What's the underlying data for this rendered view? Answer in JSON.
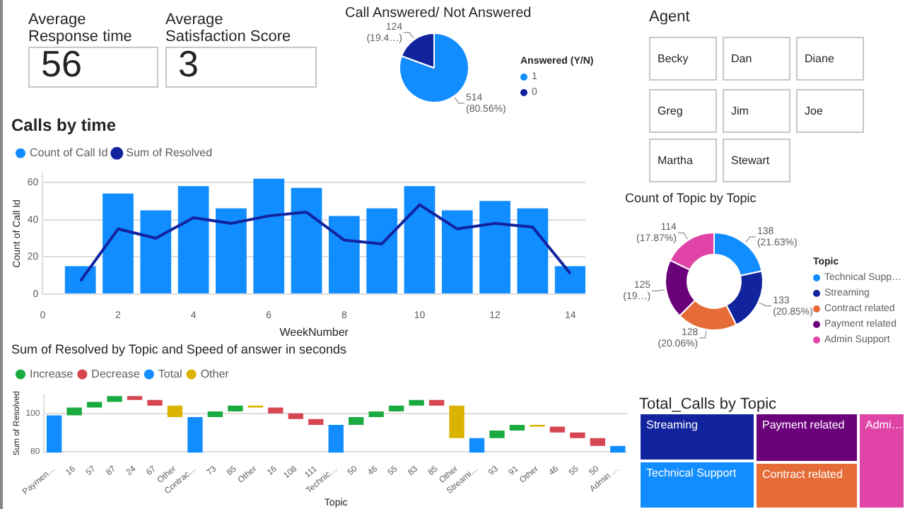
{
  "chart_data": [
    {
      "type": "other",
      "title": "Average Response time",
      "annotations": [
        "56"
      ]
    },
    {
      "type": "other",
      "title": "Average Satisfaction Score",
      "annotations": [
        "3"
      ]
    },
    {
      "type": "pie",
      "title": "Call Answered/ Not Answered",
      "legend_title": "Answered (Y/N)",
      "legend": "right",
      "categories": [
        "1",
        "0"
      ],
      "values": [
        514,
        124
      ],
      "colors": [
        "#118dff",
        "#12239e"
      ],
      "value_labels": [
        "514 (80.56%)",
        "124 (19.4…)"
      ]
    },
    {
      "type": "other",
      "title": "Agent",
      "annotations": [
        "Becky",
        "Dan",
        "Diane",
        "Greg",
        "Jim",
        "Joe",
        "Martha",
        "Stewart"
      ]
    },
    {
      "type": "bar",
      "title": "Calls by time",
      "xlabel": "WeekNumber",
      "ylabel": "Count of Call Id",
      "x": [
        1,
        2,
        3,
        4,
        5,
        6,
        7,
        8,
        9,
        10,
        11,
        12,
        13,
        14
      ],
      "xlim": [
        0,
        14.4
      ],
      "xticks": [
        0,
        2,
        4,
        6,
        8,
        10,
        12,
        14
      ],
      "ylim": [
        0,
        65
      ],
      "yticks": [
        0,
        20,
        40,
        60
      ],
      "grid": "y",
      "legend": "top left",
      "series": [
        {
          "name": "Count of Call Id",
          "type": "bar",
          "color": "#118dff",
          "values": [
            15,
            54,
            45,
            58,
            46,
            62,
            57,
            42,
            46,
            58,
            45,
            50,
            46,
            15
          ]
        },
        {
          "name": "Sum of Resolved",
          "type": "line",
          "color": "#12239e",
          "values": [
            7,
            35,
            30,
            41,
            38,
            42,
            44,
            29,
            27,
            48,
            35,
            38,
            36,
            11
          ]
        }
      ]
    },
    {
      "type": "donut",
      "title": "Count of Topic by Topic",
      "legend_title": "Topic",
      "legend": "right",
      "categories": [
        "Technical Supp…",
        "Streaming",
        "Contract related",
        "Payment related",
        "Admin Support"
      ],
      "values": [
        138,
        133,
        128,
        125,
        114
      ],
      "colors": [
        "#118dff",
        "#12239e",
        "#e66c37",
        "#6b007b",
        "#e044a7"
      ],
      "value_labels": [
        "138 (21.63%)",
        "133 (20.85%)",
        "128 (20.06%)",
        "125 (19…)",
        "114 (17.87%)"
      ]
    },
    {
      "type": "bar",
      "title": "Sum of Resolved by Topic and Speed of answer in seconds",
      "xlabel": "Topic",
      "ylabel": "Sum of Resolved",
      "ylim": [
        79.5,
        110
      ],
      "yticks": [
        80,
        100
      ],
      "grid": "y",
      "legend": "top left",
      "categories": [
        "Paymen…",
        "16",
        "57",
        "87",
        "24",
        "67",
        "Other",
        "Contrac…",
        "73",
        "85",
        "Other",
        "16",
        "108",
        "111",
        "Technic…",
        "50",
        "46",
        "55",
        "83",
        "85",
        "Other",
        "Streami…",
        "93",
        "91",
        "Other",
        "46",
        "55",
        "50",
        "Admin …"
      ],
      "series": [
        {
          "name": "Increase",
          "color": "#1aab40",
          "values": [
            null,
            4,
            3,
            3,
            null,
            null,
            null,
            null,
            3,
            3,
            null,
            null,
            null,
            null,
            null,
            4,
            3,
            3,
            3,
            null,
            null,
            null,
            4,
            3,
            null,
            null,
            null,
            null,
            null
          ],
          "base": [
            null,
            99,
            103,
            106,
            null,
            null,
            null,
            null,
            98,
            101,
            null,
            null,
            null,
            null,
            null,
            94,
            98,
            101,
            104,
            null,
            null,
            null,
            87,
            91,
            null,
            null,
            null,
            null,
            null
          ]
        },
        {
          "name": "Decrease",
          "color": "#d64550",
          "values": [
            null,
            null,
            null,
            null,
            -2,
            -3,
            null,
            null,
            null,
            null,
            null,
            -3,
            -3,
            -3,
            null,
            null,
            null,
            null,
            null,
            -3,
            null,
            null,
            null,
            null,
            null,
            -3,
            -3,
            -4,
            null
          ],
          "base": [
            null,
            null,
            null,
            null,
            109,
            107,
            null,
            null,
            null,
            null,
            null,
            103,
            100,
            97,
            null,
            null,
            null,
            null,
            null,
            107,
            null,
            null,
            null,
            null,
            null,
            93,
            90,
            87,
            null
          ]
        },
        {
          "name": "Total",
          "color": "#118dff",
          "values": [
            99,
            null,
            null,
            null,
            null,
            null,
            null,
            98,
            null,
            null,
            null,
            null,
            null,
            null,
            94,
            null,
            null,
            null,
            null,
            null,
            null,
            87,
            null,
            null,
            null,
            null,
            null,
            null,
            83
          ]
        },
        {
          "name": "Other",
          "color": "#d9b300",
          "values": [
            null,
            null,
            null,
            null,
            null,
            null,
            -6,
            null,
            null,
            null,
            -1,
            null,
            null,
            null,
            null,
            null,
            null,
            null,
            null,
            null,
            -17,
            null,
            null,
            null,
            -1,
            null,
            null,
            null,
            null
          ],
          "base": [
            null,
            null,
            null,
            null,
            null,
            null,
            104,
            null,
            null,
            null,
            104,
            null,
            null,
            null,
            null,
            null,
            null,
            null,
            null,
            null,
            104,
            null,
            null,
            null,
            94,
            null,
            null,
            null,
            null
          ]
        }
      ]
    },
    {
      "type": "other",
      "title": "Total_Calls by Topic",
      "annotations": [
        "Streaming",
        "Payment related",
        "Admi…",
        "Technical Support",
        "Contract related"
      ],
      "colors": [
        "#12239e",
        "#6b007b",
        "#e044a7",
        "#118dff",
        "#e66c37"
      ]
    }
  ]
}
